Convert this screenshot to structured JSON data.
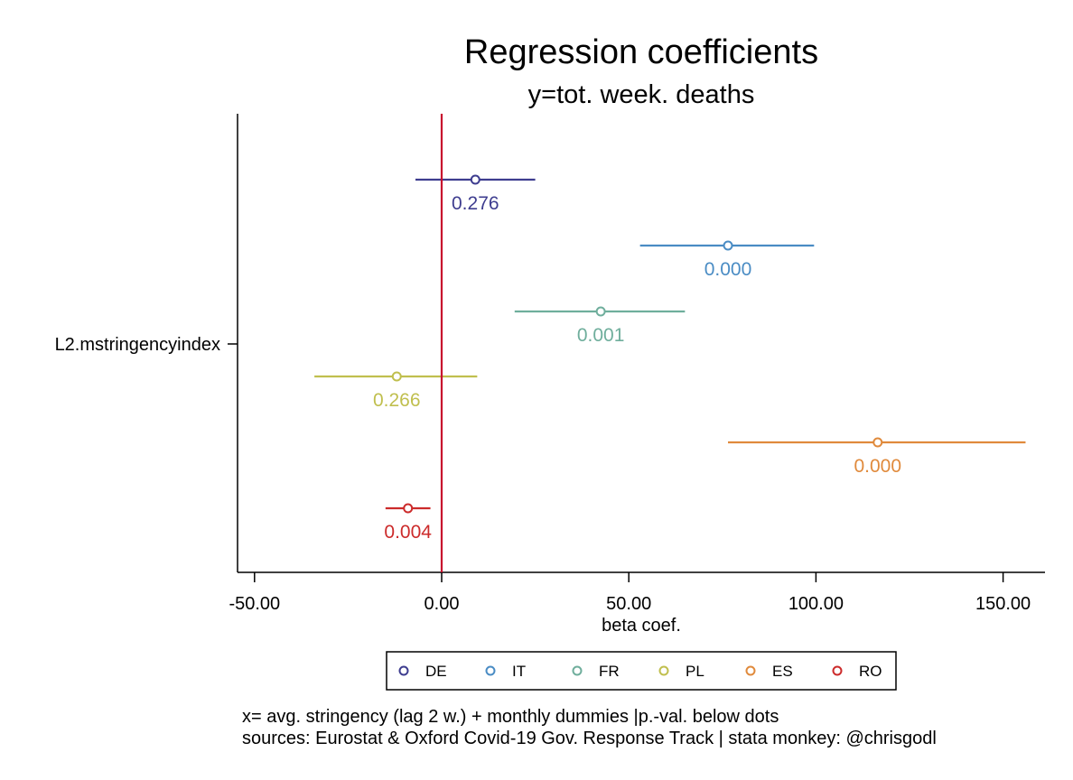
{
  "chart_data": {
    "type": "scatter",
    "title": "Regression coefficients",
    "subtitle": "y=tot. week. deaths",
    "xlabel": "beta coef.",
    "ylabel": "",
    "xlim": [
      -55,
      161
    ],
    "xticks": [
      -50,
      0,
      50,
      100,
      150
    ],
    "xtick_labels": [
      "-50.00",
      "0.00",
      "50.00",
      "100.00",
      "150.00"
    ],
    "category_label": "L2.mstringencyindex",
    "reference_line": {
      "x": 0,
      "color": "#c8102e"
    },
    "grid": false,
    "legend_position": "bottom",
    "series": [
      {
        "name": "DE",
        "coef": 9,
        "ci": [
          -7,
          25
        ],
        "pvalue": "0.276",
        "color": "#3e3d8f"
      },
      {
        "name": "IT",
        "coef": 76.5,
        "ci": [
          53,
          99.5
        ],
        "pvalue": "0.000",
        "color": "#4a8cc4"
      },
      {
        "name": "FR",
        "coef": 42.5,
        "ci": [
          19.5,
          65
        ],
        "pvalue": "0.001",
        "color": "#6fae9c"
      },
      {
        "name": "PL",
        "coef": -12,
        "ci": [
          -34,
          9.5
        ],
        "pvalue": "0.266",
        "color": "#c0bf4e"
      },
      {
        "name": "ES",
        "coef": 116.5,
        "ci": [
          76.5,
          156
        ],
        "pvalue": "0.000",
        "color": "#e08a3c"
      },
      {
        "name": "RO",
        "coef": -9,
        "ci": [
          -15,
          -3
        ],
        "pvalue": "0.004",
        "color": "#cc2b2b"
      }
    ]
  },
  "notes": [
    "x= avg. stringency (lag 2 w.) + monthly dummies |p.-val. below dots",
    "sources: Eurostat & Oxford Covid-19 Gov. Response Track | stata monkey: @chrisgodl"
  ]
}
